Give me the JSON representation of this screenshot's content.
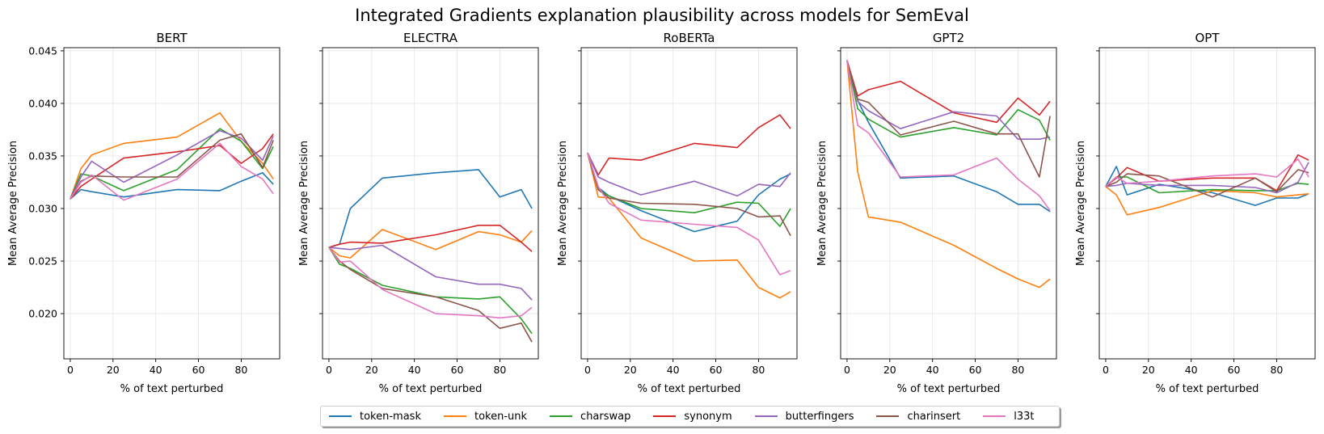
{
  "chart_data": {
    "type": "line",
    "title": "Integrated Gradients explanation plausibility across models for SemEval",
    "xlabel": "% of text perturbed",
    "ylabel": "Mean Average Precision",
    "xlim": [
      -3,
      98
    ],
    "ylim": [
      0.0157,
      0.0453
    ],
    "xticks": [
      0,
      20,
      40,
      60,
      80
    ],
    "yticks": [
      0.02,
      0.025,
      0.03,
      0.035,
      0.04,
      0.045
    ],
    "ytick_labels": [
      "0.020",
      "0.025",
      "0.030",
      "0.035",
      "0.040",
      "0.045"
    ],
    "grid": true,
    "legend_placement": "bottom-center",
    "series_names": [
      "token-mask",
      "token-unk",
      "charswap",
      "synonym",
      "butterfingers",
      "charinsert",
      "l33t"
    ],
    "series_colors": [
      "#1f77b4",
      "#ff7f0e",
      "#2ca02c",
      "#d62728",
      "#9467bd",
      "#8c564b",
      "#e377c2"
    ],
    "x": [
      0,
      5,
      10,
      25,
      50,
      70,
      80,
      90,
      95
    ],
    "panels": [
      {
        "title": "BERT",
        "series": [
          {
            "name": "token-mask",
            "values": [
              0.0309,
              0.0318,
              0.0316,
              0.0311,
              0.0318,
              0.0317,
              0.0326,
              0.0334,
              0.0323
            ]
          },
          {
            "name": "token-unk",
            "values": [
              0.0309,
              0.0338,
              0.0351,
              0.0362,
              0.0368,
              0.0391,
              0.0364,
              0.0343,
              0.0328
            ]
          },
          {
            "name": "charswap",
            "values": [
              0.0309,
              0.0333,
              0.0331,
              0.0317,
              0.0337,
              0.0376,
              0.0364,
              0.0338,
              0.0359
            ]
          },
          {
            "name": "synonym",
            "values": [
              0.0309,
              0.0321,
              0.0328,
              0.0348,
              0.0354,
              0.036,
              0.0343,
              0.0357,
              0.0371
            ]
          },
          {
            "name": "butterfingers",
            "values": [
              0.0309,
              0.033,
              0.0345,
              0.0325,
              0.0351,
              0.0374,
              0.0367,
              0.0346,
              0.0369
            ]
          },
          {
            "name": "charinsert",
            "values": [
              0.0309,
              0.0326,
              0.0331,
              0.033,
              0.033,
              0.0365,
              0.0371,
              0.0339,
              0.0365
            ]
          },
          {
            "name": "l33t",
            "values": [
              0.0309,
              0.0325,
              0.0332,
              0.0308,
              0.0328,
              0.0362,
              0.034,
              0.0328,
              0.0314
            ]
          }
        ]
      },
      {
        "title": "ELECTRA",
        "series": [
          {
            "name": "token-mask",
            "values": [
              0.0263,
              0.0266,
              0.03,
              0.0329,
              0.0334,
              0.0337,
              0.0311,
              0.0318,
              0.03
            ]
          },
          {
            "name": "token-unk",
            "values": [
              0.0263,
              0.0255,
              0.0253,
              0.028,
              0.0261,
              0.0278,
              0.0275,
              0.0268,
              0.0279
            ]
          },
          {
            "name": "charswap",
            "values": [
              0.0263,
              0.0247,
              0.0243,
              0.0227,
              0.0216,
              0.0214,
              0.0216,
              0.0195,
              0.0181
            ]
          },
          {
            "name": "synonym",
            "values": [
              0.0263,
              0.0266,
              0.0268,
              0.0267,
              0.0275,
              0.0284,
              0.0284,
              0.0268,
              0.0259
            ]
          },
          {
            "name": "butterfingers",
            "values": [
              0.0263,
              0.0262,
              0.0261,
              0.0265,
              0.0235,
              0.0228,
              0.0228,
              0.0224,
              0.0213
            ]
          },
          {
            "name": "charinsert",
            "values": [
              0.0263,
              0.025,
              0.0242,
              0.0224,
              0.0216,
              0.0203,
              0.0186,
              0.0191,
              0.0173
            ]
          },
          {
            "name": "l33t",
            "values": [
              0.0263,
              0.0249,
              0.025,
              0.0223,
              0.02,
              0.0198,
              0.0196,
              0.0198,
              0.0206
            ]
          }
        ]
      },
      {
        "title": "RoBERTa",
        "series": [
          {
            "name": "token-mask",
            "values": [
              0.0353,
              0.032,
              0.0312,
              0.0298,
              0.0278,
              0.0288,
              0.0313,
              0.0328,
              0.0333
            ]
          },
          {
            "name": "token-unk",
            "values": [
              0.0353,
              0.0311,
              0.031,
              0.0272,
              0.025,
              0.0251,
              0.0225,
              0.0215,
              0.0221
            ]
          },
          {
            "name": "charswap",
            "values": [
              0.0353,
              0.0318,
              0.0312,
              0.03,
              0.0296,
              0.0306,
              0.0305,
              0.0283,
              0.03
            ]
          },
          {
            "name": "synonym",
            "values": [
              0.0353,
              0.0332,
              0.0348,
              0.0346,
              0.0362,
              0.0358,
              0.0377,
              0.0389,
              0.0376
            ]
          },
          {
            "name": "butterfingers",
            "values": [
              0.0353,
              0.033,
              0.0325,
              0.0313,
              0.0326,
              0.0312,
              0.0323,
              0.0321,
              0.0334
            ]
          },
          {
            "name": "charinsert",
            "values": [
              0.0353,
              0.0318,
              0.031,
              0.0305,
              0.0304,
              0.03,
              0.0292,
              0.0293,
              0.0274
            ]
          },
          {
            "name": "l33t",
            "values": [
              0.0353,
              0.0321,
              0.0305,
              0.0289,
              0.0285,
              0.0282,
              0.027,
              0.0237,
              0.0241
            ]
          }
        ]
      },
      {
        "title": "GPT2",
        "series": [
          {
            "name": "token-mask",
            "values": [
              0.0441,
              0.0403,
              0.0382,
              0.0329,
              0.0331,
              0.0316,
              0.0304,
              0.0304,
              0.0297
            ]
          },
          {
            "name": "token-unk",
            "values": [
              0.0441,
              0.0335,
              0.0292,
              0.0287,
              0.0265,
              0.0243,
              0.0233,
              0.0225,
              0.0233
            ]
          },
          {
            "name": "charswap",
            "values": [
              0.0441,
              0.0395,
              0.0385,
              0.0368,
              0.0377,
              0.037,
              0.0394,
              0.0384,
              0.0365
            ]
          },
          {
            "name": "synonym",
            "values": [
              0.0441,
              0.0407,
              0.0413,
              0.0421,
              0.0391,
              0.0382,
              0.0405,
              0.0389,
              0.0402
            ]
          },
          {
            "name": "butterfingers",
            "values": [
              0.0441,
              0.0402,
              0.0393,
              0.0376,
              0.0392,
              0.0388,
              0.0366,
              0.0366,
              0.0368
            ]
          },
          {
            "name": "charinsert",
            "values": [
              0.0441,
              0.0404,
              0.0401,
              0.037,
              0.0383,
              0.0371,
              0.0371,
              0.033,
              0.0388
            ]
          },
          {
            "name": "l33t",
            "values": [
              0.0441,
              0.0379,
              0.0372,
              0.033,
              0.0332,
              0.0348,
              0.0328,
              0.0312,
              0.0298
            ]
          }
        ]
      },
      {
        "title": "OPT",
        "series": [
          {
            "name": "token-mask",
            "values": [
              0.0321,
              0.034,
              0.0313,
              0.0323,
              0.0315,
              0.0303,
              0.031,
              0.031,
              0.0314
            ]
          },
          {
            "name": "token-unk",
            "values": [
              0.0321,
              0.0313,
              0.0294,
              0.0301,
              0.0317,
              0.0315,
              0.0311,
              0.0313,
              0.0314
            ]
          },
          {
            "name": "charswap",
            "values": [
              0.0321,
              0.033,
              0.033,
              0.0315,
              0.0318,
              0.0317,
              0.0317,
              0.0324,
              0.0323
            ]
          },
          {
            "name": "synonym",
            "values": [
              0.0321,
              0.0329,
              0.0339,
              0.0326,
              0.0329,
              0.0329,
              0.0317,
              0.0351,
              0.0346
            ]
          },
          {
            "name": "butterfingers",
            "values": [
              0.0321,
              0.0322,
              0.0324,
              0.0322,
              0.0322,
              0.032,
              0.0315,
              0.0325,
              0.0344
            ]
          },
          {
            "name": "charinsert",
            "values": [
              0.0321,
              0.0325,
              0.0333,
              0.0331,
              0.0311,
              0.0329,
              0.0316,
              0.0337,
              0.0334
            ]
          },
          {
            "name": "l33t",
            "values": [
              0.0321,
              0.033,
              0.0324,
              0.0326,
              0.0331,
              0.0333,
              0.033,
              0.0347,
              0.033
            ]
          }
        ]
      }
    ]
  }
}
